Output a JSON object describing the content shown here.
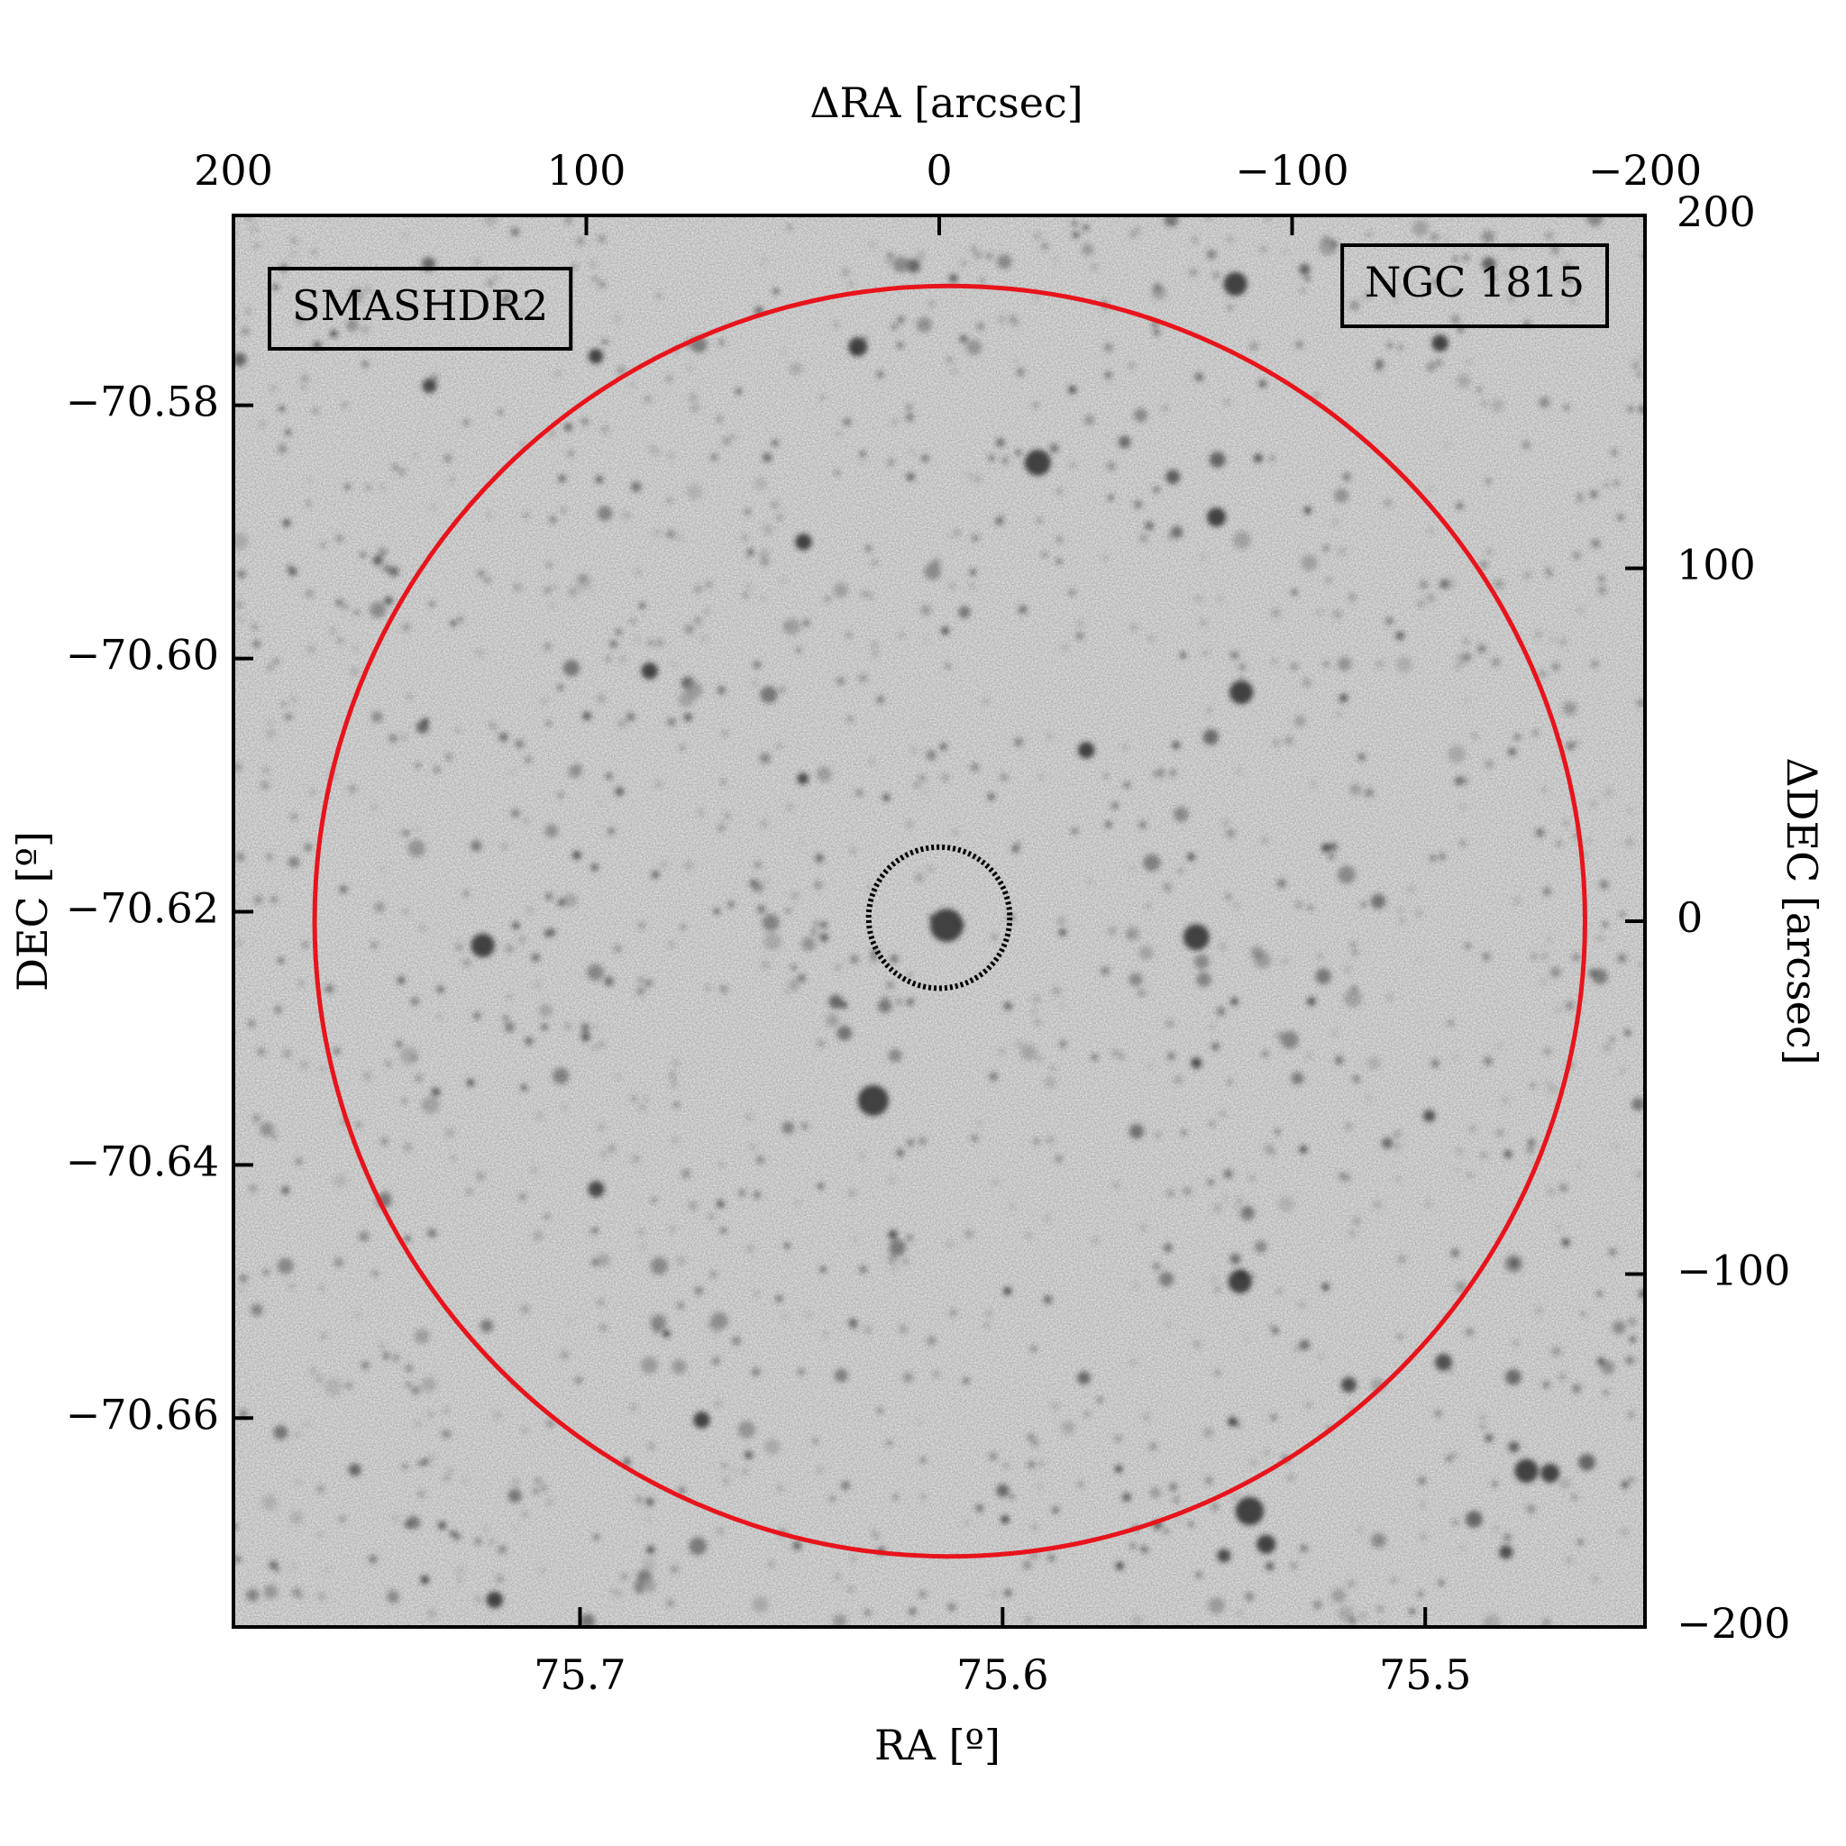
{
  "chart_data": {
    "type": "sky-image",
    "xlabel": "RA [º]",
    "ylabel": "DEC [º]",
    "x2label": "ΔRA [arcsec]",
    "y2label": "ΔDEC [arcsec]",
    "xlim": [
      75.782,
      75.448
    ],
    "xticks": [
      75.7,
      75.6,
      75.5
    ],
    "ylim": [
      -70.6765,
      -70.565
    ],
    "yticks": [
      {
        "value": -70.58,
        "label": "−70.58"
      },
      {
        "value": -70.6,
        "label": "−70.60"
      },
      {
        "value": -70.62,
        "label": "−70.62"
      },
      {
        "value": -70.64,
        "label": "−70.64"
      },
      {
        "value": -70.66,
        "label": "−70.66"
      }
    ],
    "x2lim": [
      200,
      -200
    ],
    "x2ticks": [
      200,
      100,
      0,
      {
        "value": -100,
        "label": "−100"
      },
      {
        "value": -200,
        "label": "−200"
      }
    ],
    "y2lim": [
      -200,
      200
    ],
    "y2ticks": [
      200,
      100,
      0,
      {
        "value": -100,
        "label": "−100"
      },
      {
        "value": -200,
        "label": "−200"
      }
    ],
    "circles": [
      {
        "x": -3,
        "y": 0,
        "r": 180,
        "color": "#e8141c",
        "style": "solid"
      },
      {
        "x": 0,
        "y": 1,
        "r": 20,
        "color": "#000000",
        "style": "dotted"
      }
    ],
    "annotations": [
      {
        "text": "SMASHDR2",
        "color": "#e8141c",
        "corner": "upper left"
      },
      {
        "text": "NGC 1815",
        "color": "#000000",
        "corner": "upper right"
      }
    ]
  }
}
